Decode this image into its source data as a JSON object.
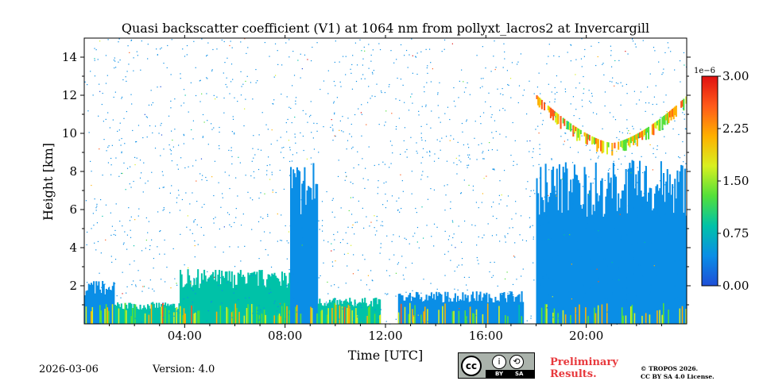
{
  "chart_data": {
    "type": "heatmap",
    "title": "Quasi backscatter coefficient (V1) at 1064 nm from pollyxt_lacros2 at Invercargill",
    "xlabel": "Time [UTC]",
    "ylabel": "Height [km]",
    "xlim_hours": [
      0,
      24
    ],
    "ylim_km": [
      0,
      15
    ],
    "x_ticks": [
      {
        "hour": 4,
        "label": "04:00"
      },
      {
        "hour": 8,
        "label": "08:00"
      },
      {
        "hour": 12,
        "label": "12:00"
      },
      {
        "hour": 16,
        "label": "16:00"
      },
      {
        "hour": 20,
        "label": "20:00"
      }
    ],
    "y_ticks": [
      2,
      4,
      6,
      8,
      10,
      12,
      14
    ],
    "colorbar": {
      "multiplier_label": "1e−6",
      "range": [
        0,
        3.0
      ],
      "ticks": [
        "0.00",
        "0.75",
        "1.50",
        "2.25",
        "3.00"
      ],
      "colors": [
        "#1f4fd8",
        "#0a8ee6",
        "#00c2a8",
        "#53e03a",
        "#d8f020",
        "#ffb000",
        "#ff5a1a",
        "#e01010"
      ]
    },
    "features": [
      {
        "name": "boundary-layer-aerosol",
        "start_hour": 0.0,
        "end_hour": 1.2,
        "top_km": 2.0,
        "level": 0.2
      },
      {
        "name": "surface-layer",
        "start_hour": 1.2,
        "end_hour": 3.8,
        "top_km": 1.0,
        "level": 0.25
      },
      {
        "name": "broken-cloud-base",
        "start_hour": 3.8,
        "end_hour": 8.2,
        "top_km": 2.5,
        "level": 0.3
      },
      {
        "name": "tall-aerosol-column",
        "start_hour": 8.2,
        "end_hour": 9.3,
        "top_km": 7.5,
        "level": 0.15
      },
      {
        "name": "low-aerosol",
        "start_hour": 9.3,
        "end_hour": 11.8,
        "top_km": 1.2,
        "level": 0.3
      },
      {
        "name": "low-aerosol",
        "start_hour": 12.5,
        "end_hour": 17.5,
        "top_km": 1.5,
        "level": 0.2
      },
      {
        "name": "deep-aerosol",
        "start_hour": 18.0,
        "end_hour": 24.0,
        "top_km": 7.5,
        "level": 0.15
      },
      {
        "name": "cirrus-cloud",
        "start_hour": 18.0,
        "end_hour": 24.0,
        "top_km": 12.5,
        "level": 0.7
      }
    ]
  },
  "footer": {
    "date": "2026-03-06",
    "version": "Version: 4.0",
    "license_badge": {
      "cc": "cc",
      "by_icon": "i",
      "sa_icon": "⟲",
      "by_label": "BY",
      "sa_label": "SA"
    },
    "preliminary": "Preliminary\nResults.",
    "copyright": "© TROPOS 2026.\nCC BY SA 4.0 License."
  },
  "colors": {
    "preliminary": "#e8393d",
    "badge_bg": "#aab2ab"
  }
}
